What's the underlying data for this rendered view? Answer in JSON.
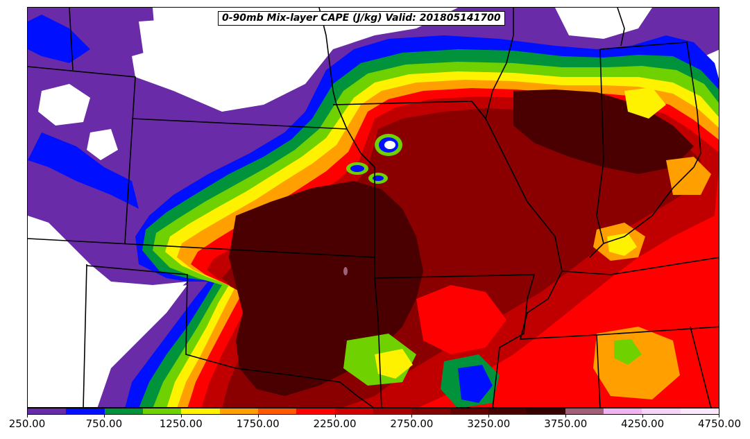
{
  "title": "0-90mb Mix-layer CAPE (J/kg) Valid: 201805141700",
  "colorbar": {
    "colors": [
      "#6a2ba8",
      "#0010ff",
      "#00933c",
      "#6fd100",
      "#fff200",
      "#ff9f00",
      "#ff5a00",
      "#ff0000",
      "#d10000",
      "#a80000",
      "#850000",
      "#650000",
      "#4a0000",
      "#370000",
      "#a0607a",
      "#f0b4f0",
      "#f6d4f6",
      "#fbe9fb"
    ],
    "tick_labels": [
      "250.00",
      "750.00",
      "1250.00",
      "1750.00",
      "2250.00",
      "2750.00",
      "3250.00",
      "3750.00",
      "4250.00",
      "4750.00"
    ]
  }
}
